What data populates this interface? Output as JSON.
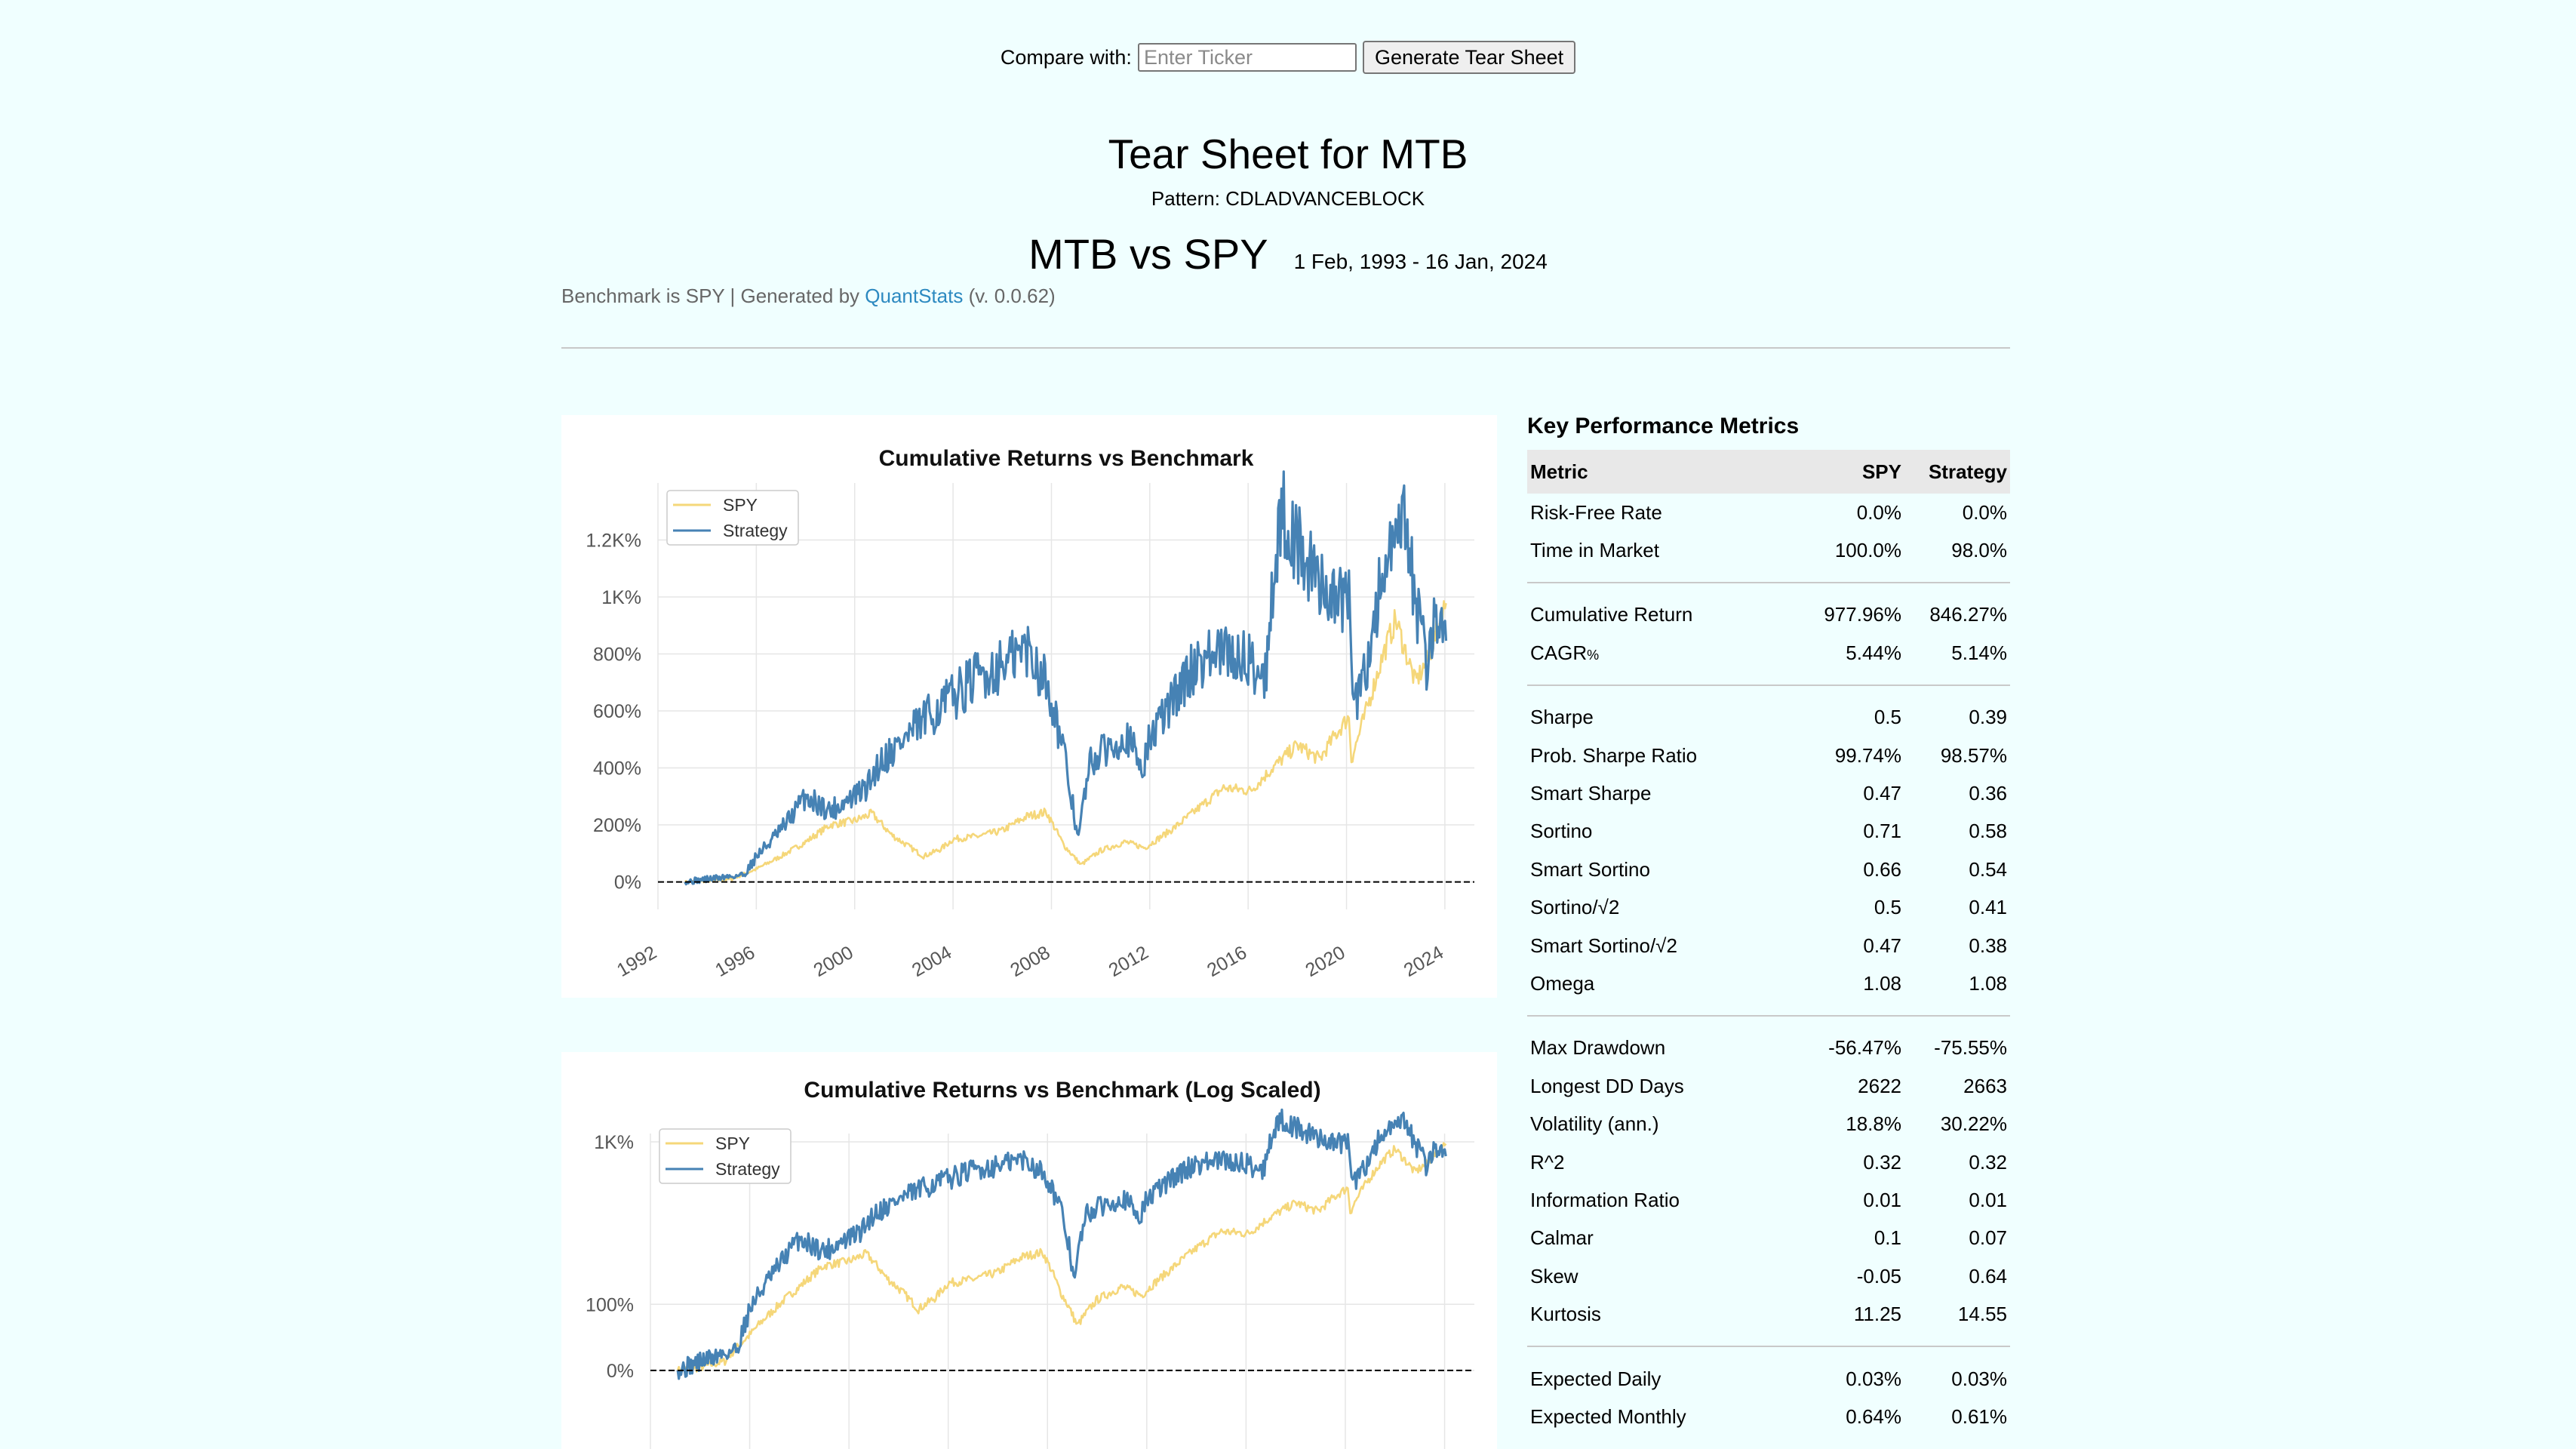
{
  "compare": {
    "label": "Compare with:",
    "placeholder": "Enter Ticker",
    "button_label": "Generate Tear Sheet"
  },
  "header": {
    "title": "Tear Sheet for MTB",
    "pattern": "Pattern: CDLADVANCEBLOCK",
    "vs_title": "MTB vs SPY",
    "date_range": "1 Feb, 1993 - 16 Jan, 2024",
    "subline_prefix": "Benchmark is SPY | Generated by ",
    "subline_link": "QuantStats",
    "subline_suffix": " (v. 0.0.62)"
  },
  "colors": {
    "background": "#f0ffff",
    "spy": "#f5d77a",
    "strategy": "#4682b4",
    "link": "#2c89c0"
  },
  "chart_data": [
    {
      "type": "line",
      "title": "Cumulative Returns vs Benchmark",
      "x_ticks": [
        "1992",
        "1996",
        "2000",
        "2004",
        "2008",
        "2012",
        "2016",
        "2020",
        "2024"
      ],
      "y_ticks": [
        "0%",
        "200%",
        "400%",
        "600%",
        "800%",
        "1K%",
        "1.2K%"
      ],
      "xlim": [
        1992,
        2025.2
      ],
      "ylim": [
        -70,
        1400
      ],
      "y_scale": "linear",
      "grid": true,
      "legend": "top-left",
      "baseline": 0,
      "series": [
        {
          "name": "SPY",
          "color": "#f5d77a",
          "x": [
            1993.1,
            1994,
            1995,
            1996,
            1997,
            1998,
            1999,
            2000,
            2000.7,
            2001.5,
            2002.8,
            2003.5,
            2004,
            2005,
            2006,
            2007,
            2007.8,
            2008.5,
            2009.2,
            2010,
            2011,
            2011.8,
            2013,
            2014,
            2015,
            2016.1,
            2017,
            2018,
            2018.9,
            2019.5,
            2020.1,
            2020.2,
            2020.8,
            2021.5,
            2022,
            2022.8,
            2023.3,
            2024.05
          ],
          "y": [
            0,
            3,
            10,
            45,
            90,
            140,
            200,
            215,
            240,
            165,
            90,
            115,
            150,
            160,
            180,
            230,
            245,
            130,
            60,
            110,
            140,
            120,
            190,
            260,
            330,
            320,
            400,
            480,
            430,
            510,
            580,
            430,
            600,
            800,
            920,
            700,
            780,
            977.96
          ]
        },
        {
          "name": "Strategy",
          "color": "#4682b4",
          "x": [
            1993.1,
            1994,
            1995,
            1995.5,
            1996,
            1997,
            1998,
            1999,
            2000,
            2000.5,
            2001,
            2002,
            2003,
            2004,
            2005,
            2006,
            2007,
            2007.7,
            2008,
            2008.5,
            2009.1,
            2009.3,
            2009.6,
            2010,
            2011,
            2011.7,
            2012,
            2013,
            2014,
            2015,
            2016,
            2016.7,
            2017,
            2017.4,
            2017.9,
            2018.5,
            2019,
            2019.7,
            2020.1,
            2020.3,
            2020.8,
            2021.5,
            2022,
            2022.3,
            2022.7,
            2023.3,
            2023.6,
            2024.05
          ],
          "y": [
            0,
            10,
            20,
            25,
            90,
            180,
            300,
            250,
            300,
            330,
            420,
            500,
            580,
            650,
            720,
            760,
            820,
            720,
            650,
            450,
            150,
            280,
            420,
            450,
            520,
            400,
            500,
            650,
            780,
            800,
            780,
            720,
            1050,
            1300,
            1200,
            1100,
            1050,
            980,
            1000,
            600,
            750,
            1100,
            1150,
            1280,
            1050,
            740,
            950,
            846.27
          ]
        }
      ]
    },
    {
      "type": "line",
      "title": "Cumulative Returns vs Benchmark (Log Scaled)",
      "y_ticks": [
        "0%",
        "100%",
        "1K%"
      ],
      "y_scale": "log",
      "grid": true,
      "legend": "top-left",
      "baseline": 0,
      "xlim": [
        1992,
        2025.2
      ],
      "series": [
        {
          "name": "SPY",
          "color": "#f5d77a",
          "x": [
            1993.1,
            1994,
            1995,
            1996,
            1997,
            1998,
            1999,
            2000,
            2000.7,
            2001.5,
            2002.8,
            2003.5,
            2004,
            2005,
            2006,
            2007,
            2007.8,
            2008.5,
            2009.2,
            2010,
            2011,
            2011.8,
            2013,
            2014,
            2015,
            2016.1,
            2017,
            2018,
            2018.9,
            2019.5,
            2020.1,
            2020.2,
            2020.8,
            2021.5,
            2022,
            2022.8,
            2023.3,
            2024.05
          ],
          "y": [
            0,
            3,
            10,
            45,
            90,
            140,
            200,
            215,
            240,
            165,
            90,
            115,
            150,
            160,
            180,
            230,
            245,
            130,
            60,
            110,
            140,
            120,
            190,
            260,
            330,
            320,
            400,
            480,
            430,
            510,
            580,
            430,
            600,
            800,
            920,
            700,
            780,
            977.96
          ]
        },
        {
          "name": "Strategy",
          "color": "#4682b4",
          "x": [
            1993.1,
            1994,
            1995,
            1995.5,
            1996,
            1997,
            1998,
            1999,
            2000,
            2000.5,
            2001,
            2002,
            2003,
            2004,
            2005,
            2006,
            2007,
            2007.7,
            2008,
            2008.5,
            2009.1,
            2009.3,
            2009.6,
            2010,
            2011,
            2011.7,
            2012,
            2013,
            2014,
            2015,
            2016,
            2016.7,
            2017,
            2017.4,
            2017.9,
            2018.5,
            2019,
            2019.7,
            2020.1,
            2020.3,
            2020.8,
            2021.5,
            2022,
            2022.3,
            2022.7,
            2023.3,
            2023.6,
            2024.05
          ],
          "y": [
            0,
            10,
            20,
            25,
            90,
            180,
            300,
            250,
            300,
            330,
            420,
            500,
            580,
            650,
            720,
            760,
            820,
            720,
            650,
            450,
            150,
            280,
            420,
            450,
            520,
            400,
            500,
            650,
            780,
            800,
            780,
            720,
            1050,
            1300,
            1200,
            1100,
            1050,
            980,
            1000,
            600,
            750,
            1100,
            1150,
            1280,
            1050,
            740,
            950,
            846.27
          ]
        }
      ]
    }
  ],
  "metrics": {
    "title": "Key Performance Metrics",
    "headers": [
      "Metric",
      "SPY",
      "Strategy"
    ],
    "groups": [
      [
        [
          "Risk-Free Rate",
          "0.0%",
          "0.0%"
        ],
        [
          "Time in Market",
          "100.0%",
          "98.0%"
        ]
      ],
      [
        [
          "Cumulative Return",
          "977.96%",
          "846.27%"
        ],
        [
          "CAGR",
          "5.44%",
          "5.14%"
        ]
      ],
      [
        [
          "Sharpe",
          "0.5",
          "0.39"
        ],
        [
          "Prob. Sharpe Ratio",
          "99.74%",
          "98.57%"
        ],
        [
          "Smart Sharpe",
          "0.47",
          "0.36"
        ],
        [
          "Sortino",
          "0.71",
          "0.58"
        ],
        [
          "Smart Sortino",
          "0.66",
          "0.54"
        ],
        [
          "Sortino/√2",
          "0.5",
          "0.41"
        ],
        [
          "Smart Sortino/√2",
          "0.47",
          "0.38"
        ],
        [
          "Omega",
          "1.08",
          "1.08"
        ]
      ],
      [
        [
          "Max Drawdown",
          "-56.47%",
          "-75.55%"
        ],
        [
          "Longest DD Days",
          "2622",
          "2663"
        ],
        [
          "Volatility (ann.)",
          "18.8%",
          "30.22%"
        ],
        [
          "R^2",
          "0.32",
          "0.32"
        ],
        [
          "Information Ratio",
          "0.01",
          "0.01"
        ],
        [
          "Calmar",
          "0.1",
          "0.07"
        ],
        [
          "Skew",
          "-0.05",
          "0.64"
        ],
        [
          "Kurtosis",
          "11.25",
          "14.55"
        ]
      ],
      [
        [
          "Expected Daily",
          "0.03%",
          "0.03%"
        ],
        [
          "Expected Monthly",
          "0.64%",
          "0.61%"
        ]
      ]
    ],
    "cagr_suffix": "%"
  }
}
